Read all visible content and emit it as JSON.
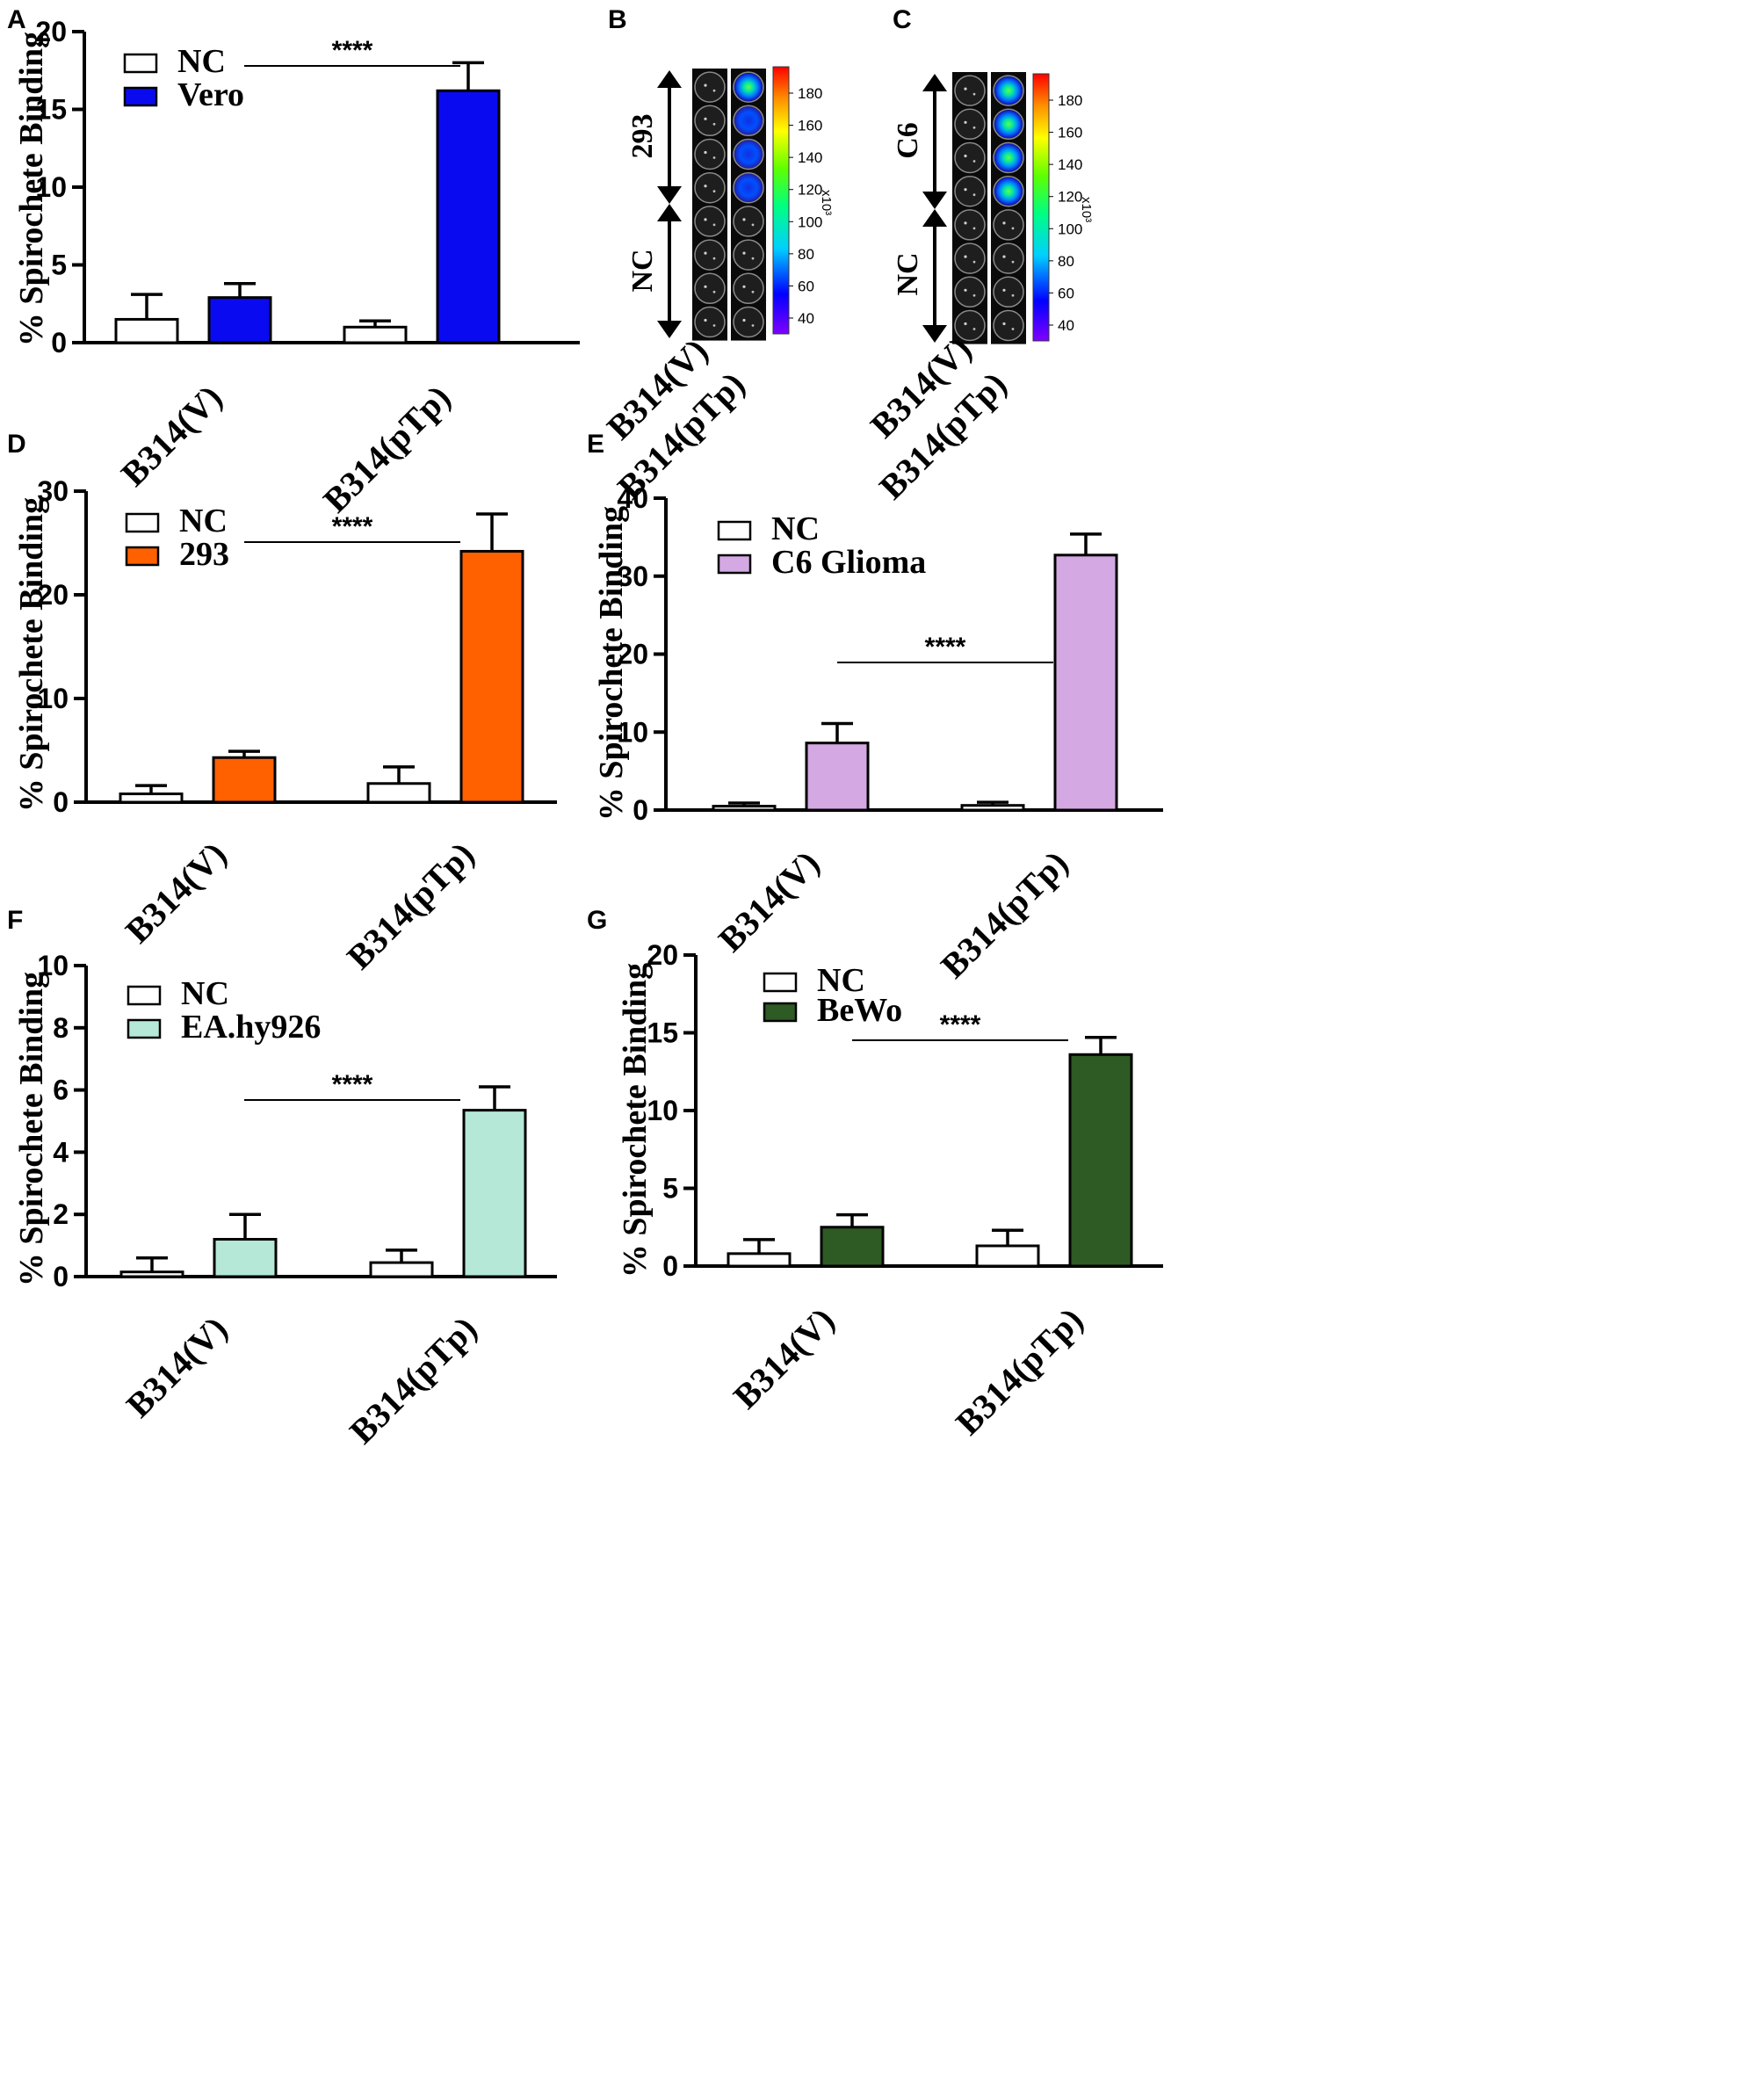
{
  "chart_data": [
    {
      "panel": "A",
      "type": "bar",
      "categories": [
        "B314(V)",
        "B314(pTp)"
      ],
      "ylabel": "% Spirochete Binding",
      "ylim": [
        0,
        20
      ],
      "yticks": [
        0,
        5,
        10,
        15,
        20
      ],
      "series": [
        {
          "name": "NC",
          "color": "#ffffff",
          "values": [
            1.5,
            1.0
          ],
          "errors": [
            1.6,
            0.4
          ]
        },
        {
          "name": "Vero",
          "color": "#0a0af0",
          "values": [
            2.9,
            16.2
          ],
          "errors": [
            0.9,
            1.8
          ]
        }
      ],
      "significance": {
        "label": "****",
        "from": "B314(V)",
        "to": "B314(pTp)"
      },
      "legend_text_color": "#000000"
    },
    {
      "panel": "D",
      "type": "bar",
      "categories": [
        "B314(V)",
        "B314(pTp)"
      ],
      "ylabel": "% Spirochete Binding",
      "ylim": [
        0,
        30
      ],
      "yticks": [
        0,
        10,
        20,
        30
      ],
      "series": [
        {
          "name": "NC",
          "color": "#ffffff",
          "values": [
            0.8,
            1.8
          ],
          "errors": [
            0.8,
            1.6
          ]
        },
        {
          "name": "293",
          "color": "#ff6000",
          "values": [
            4.3,
            24.2
          ],
          "errors": [
            0.6,
            3.6
          ]
        }
      ],
      "significance": {
        "label": "****",
        "from": "B314(V)",
        "to": "B314(pTp)"
      },
      "legend_text_color": "#000000"
    },
    {
      "panel": "E",
      "type": "bar",
      "categories": [
        "B314(V)",
        "B314(pTp)"
      ],
      "ylabel": "% Spirochete Binding",
      "ylim": [
        0,
        40
      ],
      "yticks": [
        0,
        10,
        20,
        30,
        40
      ],
      "series": [
        {
          "name": "NC",
          "color": "#ffffff",
          "values": [
            0.5,
            0.6
          ],
          "errors": [
            0.4,
            0.4
          ]
        },
        {
          "name": "C6 Glioma",
          "color": "#d4a8e2",
          "values": [
            8.6,
            32.7
          ],
          "errors": [
            2.5,
            2.7
          ]
        }
      ],
      "significance": {
        "label": "****",
        "from": "B314(V)",
        "to": "B314(pTp)"
      },
      "legend_text_color": "#000000"
    },
    {
      "panel": "F",
      "type": "bar",
      "categories": [
        "B314(V)",
        "B314(pTp)"
      ],
      "ylabel": "% Spirochete Binding",
      "ylim": [
        0,
        10
      ],
      "yticks": [
        0,
        2,
        4,
        6,
        8,
        10
      ],
      "series": [
        {
          "name": "NC",
          "color": "#ffffff",
          "values": [
            0.15,
            0.45
          ],
          "errors": [
            0.45,
            0.4
          ]
        },
        {
          "name": "EA.hy926",
          "color": "#b5e8d6",
          "values": [
            1.2,
            5.35
          ],
          "errors": [
            0.8,
            0.75
          ]
        }
      ],
      "significance": {
        "label": "****",
        "from": "B314(V)",
        "to": "B314(pTp)"
      },
      "legend_text_color": "#000000"
    },
    {
      "panel": "G",
      "type": "bar",
      "categories": [
        "B314(V)",
        "B314(pTp)"
      ],
      "ylabel": "% Spirochete Binding",
      "ylim": [
        0,
        20
      ],
      "yticks": [
        0,
        5,
        10,
        15,
        20
      ],
      "series": [
        {
          "name": "NC",
          "color": "#ffffff",
          "values": [
            0.8,
            1.3
          ],
          "errors": [
            0.9,
            1.0
          ]
        },
        {
          "name": "BeWo",
          "color": "#2e5a24",
          "values": [
            2.5,
            13.6
          ],
          "errors": [
            0.8,
            1.1
          ]
        }
      ],
      "significance": {
        "label": "****",
        "from": "B314(V)",
        "to": "B314(pTp)"
      },
      "legend_text_color": "#2e5a24"
    }
  ],
  "imaging_panels": [
    {
      "panel": "B",
      "top_group": "293",
      "bottom_group": "NC",
      "columns": [
        "B314(V)",
        "B314(pTp)"
      ],
      "colorbar_ticks": [
        "180",
        "160",
        "140",
        "120",
        "100",
        "80",
        "60",
        "40"
      ],
      "colorbar_unit": "x10³",
      "bright_wells": 4,
      "total_wells": 8
    },
    {
      "panel": "C",
      "top_group": "C6",
      "bottom_group": "NC",
      "columns": [
        "B314(V)",
        "B314(pTp)"
      ],
      "colorbar_ticks": [
        "180",
        "160",
        "140",
        "120",
        "100",
        "80",
        "60",
        "40"
      ],
      "colorbar_unit": "x10³",
      "bright_wells": 4,
      "total_wells": 8
    }
  ]
}
